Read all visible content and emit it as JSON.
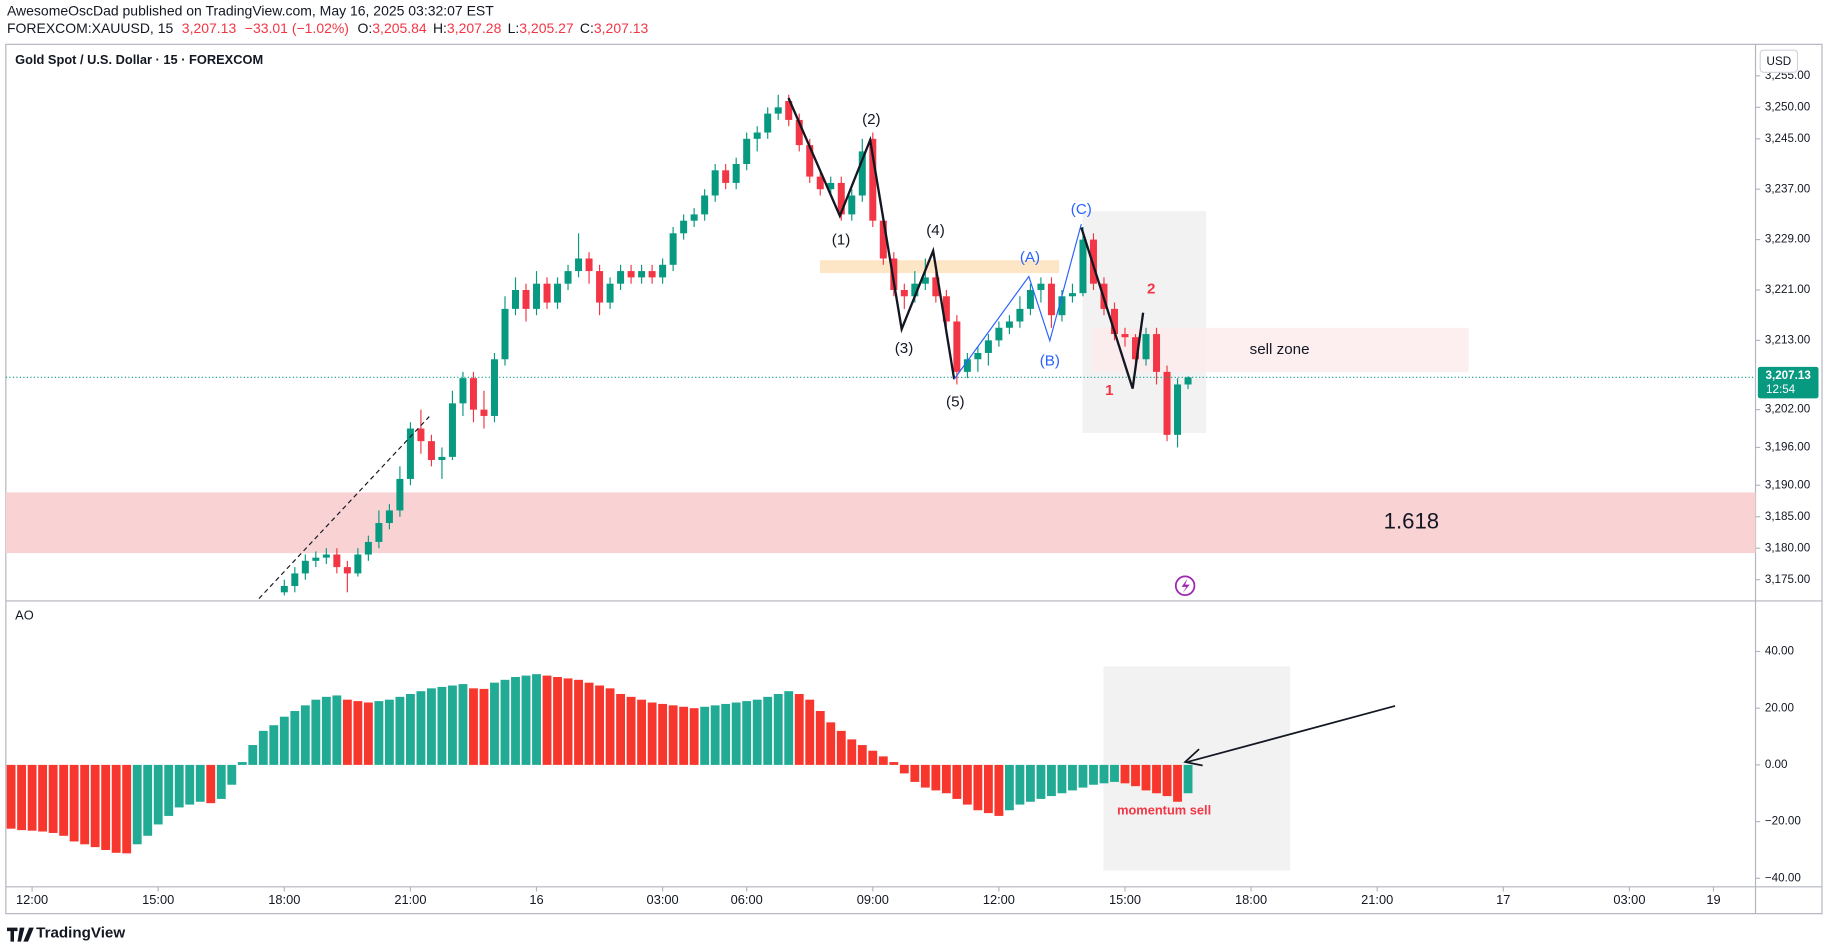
{
  "header": {
    "published": "AwesomeOscDad published on TradingView.com, May 16, 2025 03:32:07 EST",
    "symbol": "FOREXCOM:XAUUSD, 15",
    "last": "3,207.13",
    "change": "−33.01 (−1.02%)",
    "ohlc": [
      {
        "key": "O:",
        "value": "3,205.84"
      },
      {
        "key": "H:",
        "value": "3,207.28"
      },
      {
        "key": "L:",
        "value": "3,205.27"
      },
      {
        "key": "C:",
        "value": "3,207.13"
      }
    ]
  },
  "brand": "TradingView",
  "chart_data": [
    {
      "type": "candlestick",
      "title": "Gold Spot / U.S. Dollar · 15 · FOREXCOM",
      "currency": "USD",
      "up_color": "#089981",
      "down_color": "#f23645",
      "price_label": {
        "price": "3,207.13",
        "countdown": "12:54"
      },
      "xlim": [
        -2.5,
        164
      ],
      "ylim": [
        3172,
        3260
      ],
      "yticks": [
        {
          "value": 3175,
          "label": "3,175.00"
        },
        {
          "value": 3180,
          "label": "3,180.00"
        },
        {
          "value": 3185,
          "label": "3,185.00"
        },
        {
          "value": 3190,
          "label": "3,190.00"
        },
        {
          "value": 3196,
          "label": "3,196.00"
        },
        {
          "value": 3202,
          "label": "3,202.00"
        },
        {
          "value": 3213,
          "label": "3,213.00"
        },
        {
          "value": 3221,
          "label": "3,221.00"
        },
        {
          "value": 3229,
          "label": "3,229.00"
        },
        {
          "value": 3237,
          "label": "3,237.00"
        },
        {
          "value": 3245,
          "label": "3,245.00"
        },
        {
          "value": 3250,
          "label": "3,250.00"
        },
        {
          "value": 3255,
          "label": "3,255.00"
        }
      ],
      "annotations": [
        "(2)",
        "(1)",
        "(4)",
        "(3)",
        "(5)",
        "(A)",
        "(B)",
        "(C)",
        "2",
        "1",
        "sell zone",
        "1.618"
      ],
      "x": [
        24,
        25,
        26,
        27,
        28,
        29,
        30,
        31,
        32,
        33,
        34,
        35,
        36,
        37,
        38,
        39,
        40,
        41,
        42,
        43,
        44,
        45,
        46,
        47,
        48,
        49,
        50,
        51,
        52,
        53,
        54,
        55,
        56,
        57,
        58,
        59,
        60,
        61,
        62,
        63,
        64,
        65,
        66,
        67,
        68,
        69,
        70,
        71,
        72,
        73,
        74,
        75,
        76,
        77,
        78,
        79,
        80,
        81,
        82,
        83,
        84,
        85,
        86,
        87,
        88,
        89,
        90,
        91,
        92,
        93,
        94,
        95,
        96,
        97,
        98,
        99,
        100,
        101,
        102,
        103,
        104,
        105,
        106,
        107,
        108,
        109,
        110
      ],
      "values": [
        [
          3173,
          3175,
          3172.5,
          3174
        ],
        [
          3174,
          3177,
          3173,
          3176
        ],
        [
          3176,
          3179,
          3175,
          3178
        ],
        [
          3178,
          3179.5,
          3177,
          3178.5
        ],
        [
          3178.5,
          3180,
          3177.5,
          3179
        ],
        [
          3179,
          3180,
          3176,
          3177
        ],
        [
          3177,
          3178,
          3173,
          3176
        ],
        [
          3176,
          3180,
          3175.5,
          3179
        ],
        [
          3179,
          3182,
          3178,
          3181
        ],
        [
          3181,
          3186,
          3180,
          3184
        ],
        [
          3184,
          3187,
          3183,
          3186
        ],
        [
          3186,
          3193,
          3185,
          3191
        ],
        [
          3191,
          3200,
          3190,
          3199
        ],
        [
          3199,
          3202,
          3195,
          3197
        ],
        [
          3197,
          3198,
          3193,
          3194
        ],
        [
          3194,
          3196,
          3191,
          3194.5
        ],
        [
          3194.5,
          3205,
          3194,
          3203
        ],
        [
          3203,
          3208,
          3201,
          3207
        ],
        [
          3207,
          3208,
          3200,
          3202
        ],
        [
          3202,
          3205,
          3199,
          3201
        ],
        [
          3201,
          3211,
          3200,
          3210
        ],
        [
          3210,
          3220,
          3209,
          3218
        ],
        [
          3218,
          3223,
          3217,
          3221
        ],
        [
          3221,
          3222,
          3216,
          3218
        ],
        [
          3218,
          3224,
          3217,
          3222
        ],
        [
          3222,
          3223,
          3218,
          3219
        ],
        [
          3219,
          3223,
          3218,
          3222
        ],
        [
          3222,
          3225,
          3221,
          3224
        ],
        [
          3224,
          3230,
          3223,
          3226
        ],
        [
          3226,
          3227,
          3222,
          3224
        ],
        [
          3224,
          3225,
          3217,
          3219
        ],
        [
          3219,
          3223,
          3218,
          3222
        ],
        [
          3222,
          3225,
          3221,
          3224
        ],
        [
          3224,
          3225,
          3222,
          3223
        ],
        [
          3223,
          3225,
          3222,
          3224
        ],
        [
          3224,
          3225,
          3222,
          3223
        ],
        [
          3223,
          3226,
          3222,
          3225
        ],
        [
          3225,
          3231,
          3224,
          3230
        ],
        [
          3230,
          3233,
          3229,
          3232
        ],
        [
          3232,
          3234,
          3231,
          3233
        ],
        [
          3233,
          3237,
          3232,
          3236
        ],
        [
          3236,
          3241,
          3235,
          3240
        ],
        [
          3240,
          3241,
          3237,
          3238
        ],
        [
          3238,
          3242,
          3237,
          3241
        ],
        [
          3241,
          3246,
          3240,
          3245
        ],
        [
          3245,
          3247,
          3243,
          3246
        ],
        [
          3246,
          3250,
          3245,
          3249
        ],
        [
          3249,
          3252,
          3248,
          3250
        ],
        [
          3251,
          3252,
          3247,
          3248
        ],
        [
          3248,
          3249,
          3243,
          3244
        ],
        [
          3244,
          3245,
          3238,
          3239
        ],
        [
          3239,
          3240,
          3236,
          3237
        ],
        [
          3237,
          3239,
          3236,
          3238
        ],
        [
          3238,
          3239,
          3232,
          3233
        ],
        [
          3233,
          3237,
          3232,
          3236
        ],
        [
          3236,
          3245,
          3235,
          3243
        ],
        [
          3245,
          3246,
          3231,
          3232
        ],
        [
          3232,
          3233,
          3225,
          3226
        ],
        [
          3226,
          3227,
          3220,
          3221
        ],
        [
          3221,
          3222,
          3218,
          3220
        ],
        [
          3220,
          3224,
          3219,
          3222
        ],
        [
          3222,
          3226,
          3221,
          3223
        ],
        [
          3223,
          3224,
          3219,
          3220
        ],
        [
          3220,
          3221,
          3215,
          3216
        ],
        [
          3216,
          3217,
          3206,
          3208
        ],
        [
          3208,
          3211,
          3207,
          3210
        ],
        [
          3210,
          3212,
          3208,
          3211
        ],
        [
          3211,
          3214,
          3209,
          3213
        ],
        [
          3213,
          3216,
          3212,
          3215
        ],
        [
          3215,
          3217,
          3214,
          3216
        ],
        [
          3216,
          3220,
          3215,
          3218
        ],
        [
          3218,
          3222,
          3217,
          3221
        ],
        [
          3221,
          3223,
          3219,
          3222
        ],
        [
          3222,
          3223,
          3215,
          3217
        ],
        [
          3217,
          3221,
          3216,
          3220
        ],
        [
          3220,
          3222,
          3219,
          3220.5
        ],
        [
          3220.5,
          3231,
          3220,
          3229
        ],
        [
          3229,
          3230,
          3221,
          3222
        ],
        [
          3222,
          3223,
          3217,
          3218
        ],
        [
          3218,
          3219,
          3213,
          3214
        ],
        [
          3214,
          3215,
          3212,
          3213.5
        ],
        [
          3213.5,
          3214,
          3209,
          3210
        ],
        [
          3210,
          3215,
          3209,
          3214
        ],
        [
          3214,
          3215,
          3206,
          3208
        ],
        [
          3208,
          3209,
          3197,
          3198
        ],
        [
          3198,
          3207,
          3196,
          3206
        ],
        [
          3206,
          3207.28,
          3205.27,
          3207.13
        ]
      ]
    },
    {
      "type": "bar",
      "title": "AO",
      "up_color": "#22ab94",
      "down_color": "#f7372d",
      "annotations": [
        "momentum sell"
      ],
      "xlim": [
        -2.5,
        164
      ],
      "ylim": [
        -43,
        57
      ],
      "yticks": [
        {
          "value": -40,
          "label": "−40.00"
        },
        {
          "value": -20,
          "label": "−20.00"
        },
        {
          "value": 0,
          "label": "0.00"
        },
        {
          "value": 20,
          "label": "20.00"
        },
        {
          "value": 40,
          "label": "40.00"
        }
      ],
      "xticks": [
        {
          "value": 0,
          "label": "12:00"
        },
        {
          "value": 12,
          "label": "15:00"
        },
        {
          "value": 24,
          "label": "18:00"
        },
        {
          "value": 36,
          "label": "21:00"
        },
        {
          "value": 48,
          "label": "16"
        },
        {
          "value": 60,
          "label": "03:00"
        },
        {
          "value": 68,
          "label": "06:00"
        },
        {
          "value": 80,
          "label": "09:00"
        },
        {
          "value": 92,
          "label": "12:00"
        },
        {
          "value": 104,
          "label": "15:00"
        },
        {
          "value": 116,
          "label": "18:00"
        },
        {
          "value": 128,
          "label": "21:00"
        },
        {
          "value": 140,
          "label": "17"
        },
        {
          "value": 152,
          "label": "03:00"
        },
        {
          "value": 160,
          "label": "19"
        }
      ],
      "x": [
        -2,
        -1,
        0,
        1,
        2,
        3,
        4,
        5,
        6,
        7,
        8,
        9,
        10,
        11,
        12,
        13,
        14,
        15,
        16,
        17,
        18,
        19,
        20,
        21,
        22,
        23,
        24,
        25,
        26,
        27,
        28,
        29,
        30,
        31,
        32,
        33,
        34,
        35,
        36,
        37,
        38,
        39,
        40,
        41,
        42,
        43,
        44,
        45,
        46,
        47,
        48,
        49,
        50,
        51,
        52,
        53,
        54,
        55,
        56,
        57,
        58,
        59,
        60,
        61,
        62,
        63,
        64,
        65,
        66,
        67,
        68,
        69,
        70,
        71,
        72,
        73,
        74,
        75,
        76,
        77,
        78,
        79,
        80,
        81,
        82,
        83,
        84,
        85,
        86,
        87,
        88,
        89,
        90,
        91,
        92,
        93,
        94,
        95,
        96,
        97,
        98,
        99,
        100,
        101,
        102,
        103,
        104,
        105,
        106,
        107,
        108,
        109,
        110
      ],
      "values": [
        -22.5,
        -23,
        -23.2,
        -23.5,
        -24,
        -25,
        -27,
        -28,
        -29,
        -30,
        -31,
        -31.2,
        -28,
        -25,
        -21,
        -18,
        -15,
        -14,
        -13,
        -13.5,
        -12,
        -7,
        1,
        7,
        12,
        14,
        17,
        19,
        21,
        23,
        24,
        24.5,
        23,
        22.5,
        22,
        22.5,
        23,
        24,
        25,
        26,
        27,
        27.5,
        28,
        28.5,
        27,
        26.8,
        29,
        30,
        31,
        31.5,
        32,
        31.5,
        31,
        30.5,
        30,
        29,
        28,
        27,
        25,
        24,
        23,
        22,
        21.5,
        21,
        20.5,
        20,
        20.5,
        21,
        21.5,
        22,
        22.5,
        23,
        24,
        25,
        26,
        25,
        23,
        19,
        15,
        12,
        9,
        7,
        5,
        3,
        1,
        -3,
        -6,
        -8,
        -9,
        -10,
        -12,
        -14,
        -16,
        -17,
        -18,
        -16,
        -14,
        -13,
        -12,
        -11,
        -10,
        -9,
        -8,
        -7,
        -6.5,
        -6,
        -6.5,
        -7.5,
        -9,
        -10,
        -11,
        -13,
        -10
      ]
    }
  ]
}
